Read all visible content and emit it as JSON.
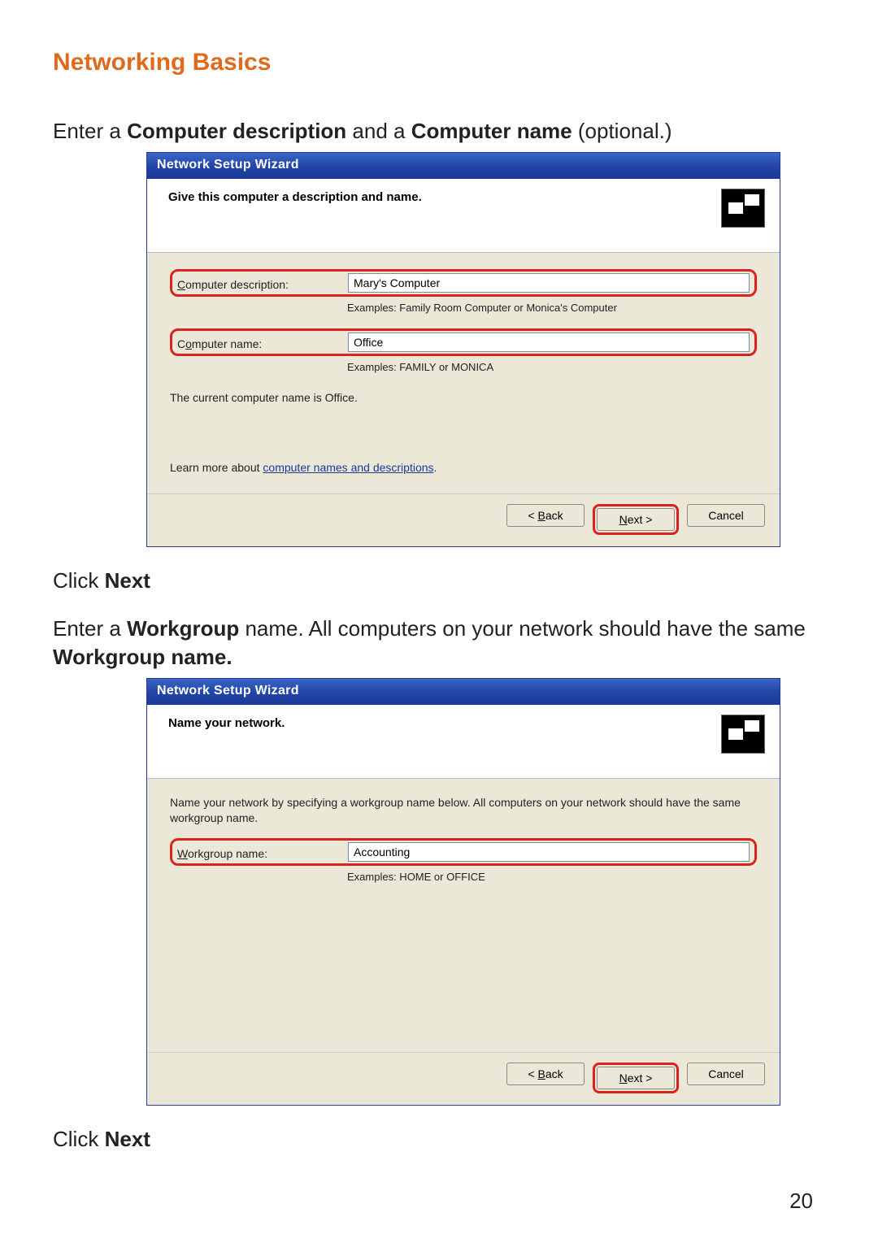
{
  "page": {
    "title": "Networking Basics",
    "page_number": "20",
    "instr1_pre": "Enter a ",
    "instr1_b1": "Computer description",
    "instr1_mid": " and a ",
    "instr1_b2": "Computer name",
    "instr1_post": " (optional.)",
    "click_next": "Click ",
    "click_next_b": "Next",
    "instr2_pre": "Enter a ",
    "instr2_b1": "Workgroup",
    "instr2_mid": " name.  All computers on your network should have the same ",
    "instr2_b2": "Workgroup name."
  },
  "colors": {
    "title": "#e06a1c",
    "highlight": "#d9231e",
    "titlebar_grad_top": "#3a66c9",
    "titlebar_grad_bot": "#1b3a96",
    "dialog_bg": "#ece8d8",
    "link": "#1b3a96"
  },
  "dialog1": {
    "title": "Network Setup Wizard",
    "subhead": "Give this computer a description and name.",
    "label_desc_u": "C",
    "label_desc_rest": "omputer description:",
    "input_desc": "Mary's Computer",
    "example_desc": "Examples: Family Room Computer or Monica's Computer",
    "label_name_pre": "C",
    "label_name_u": "o",
    "label_name_rest": "mputer name:",
    "input_name": "Office",
    "example_name": "Examples: FAMILY or MONICA",
    "current_name": "The current computer name is Office.",
    "learn_pre": "Learn more about ",
    "learn_link": "computer names and descriptions",
    "learn_post": ".",
    "btn_back_lt": "< ",
    "btn_back_u": "B",
    "btn_back_rest": "ack",
    "btn_next_u": "N",
    "btn_next_rest": "ext >",
    "btn_cancel": "Cancel"
  },
  "dialog2": {
    "title": "Network Setup Wizard",
    "subhead": "Name your network.",
    "desc": "Name your network by specifying a workgroup name below. All computers on your network should have the same workgroup name.",
    "label_wg_u": "W",
    "label_wg_rest": "orkgroup name:",
    "input_wg": "Accounting",
    "example_wg": "Examples: HOME or OFFICE",
    "btn_back_lt": "< ",
    "btn_back_u": "B",
    "btn_back_rest": "ack",
    "btn_next_u": "N",
    "btn_next_rest": "ext >",
    "btn_cancel": "Cancel"
  }
}
